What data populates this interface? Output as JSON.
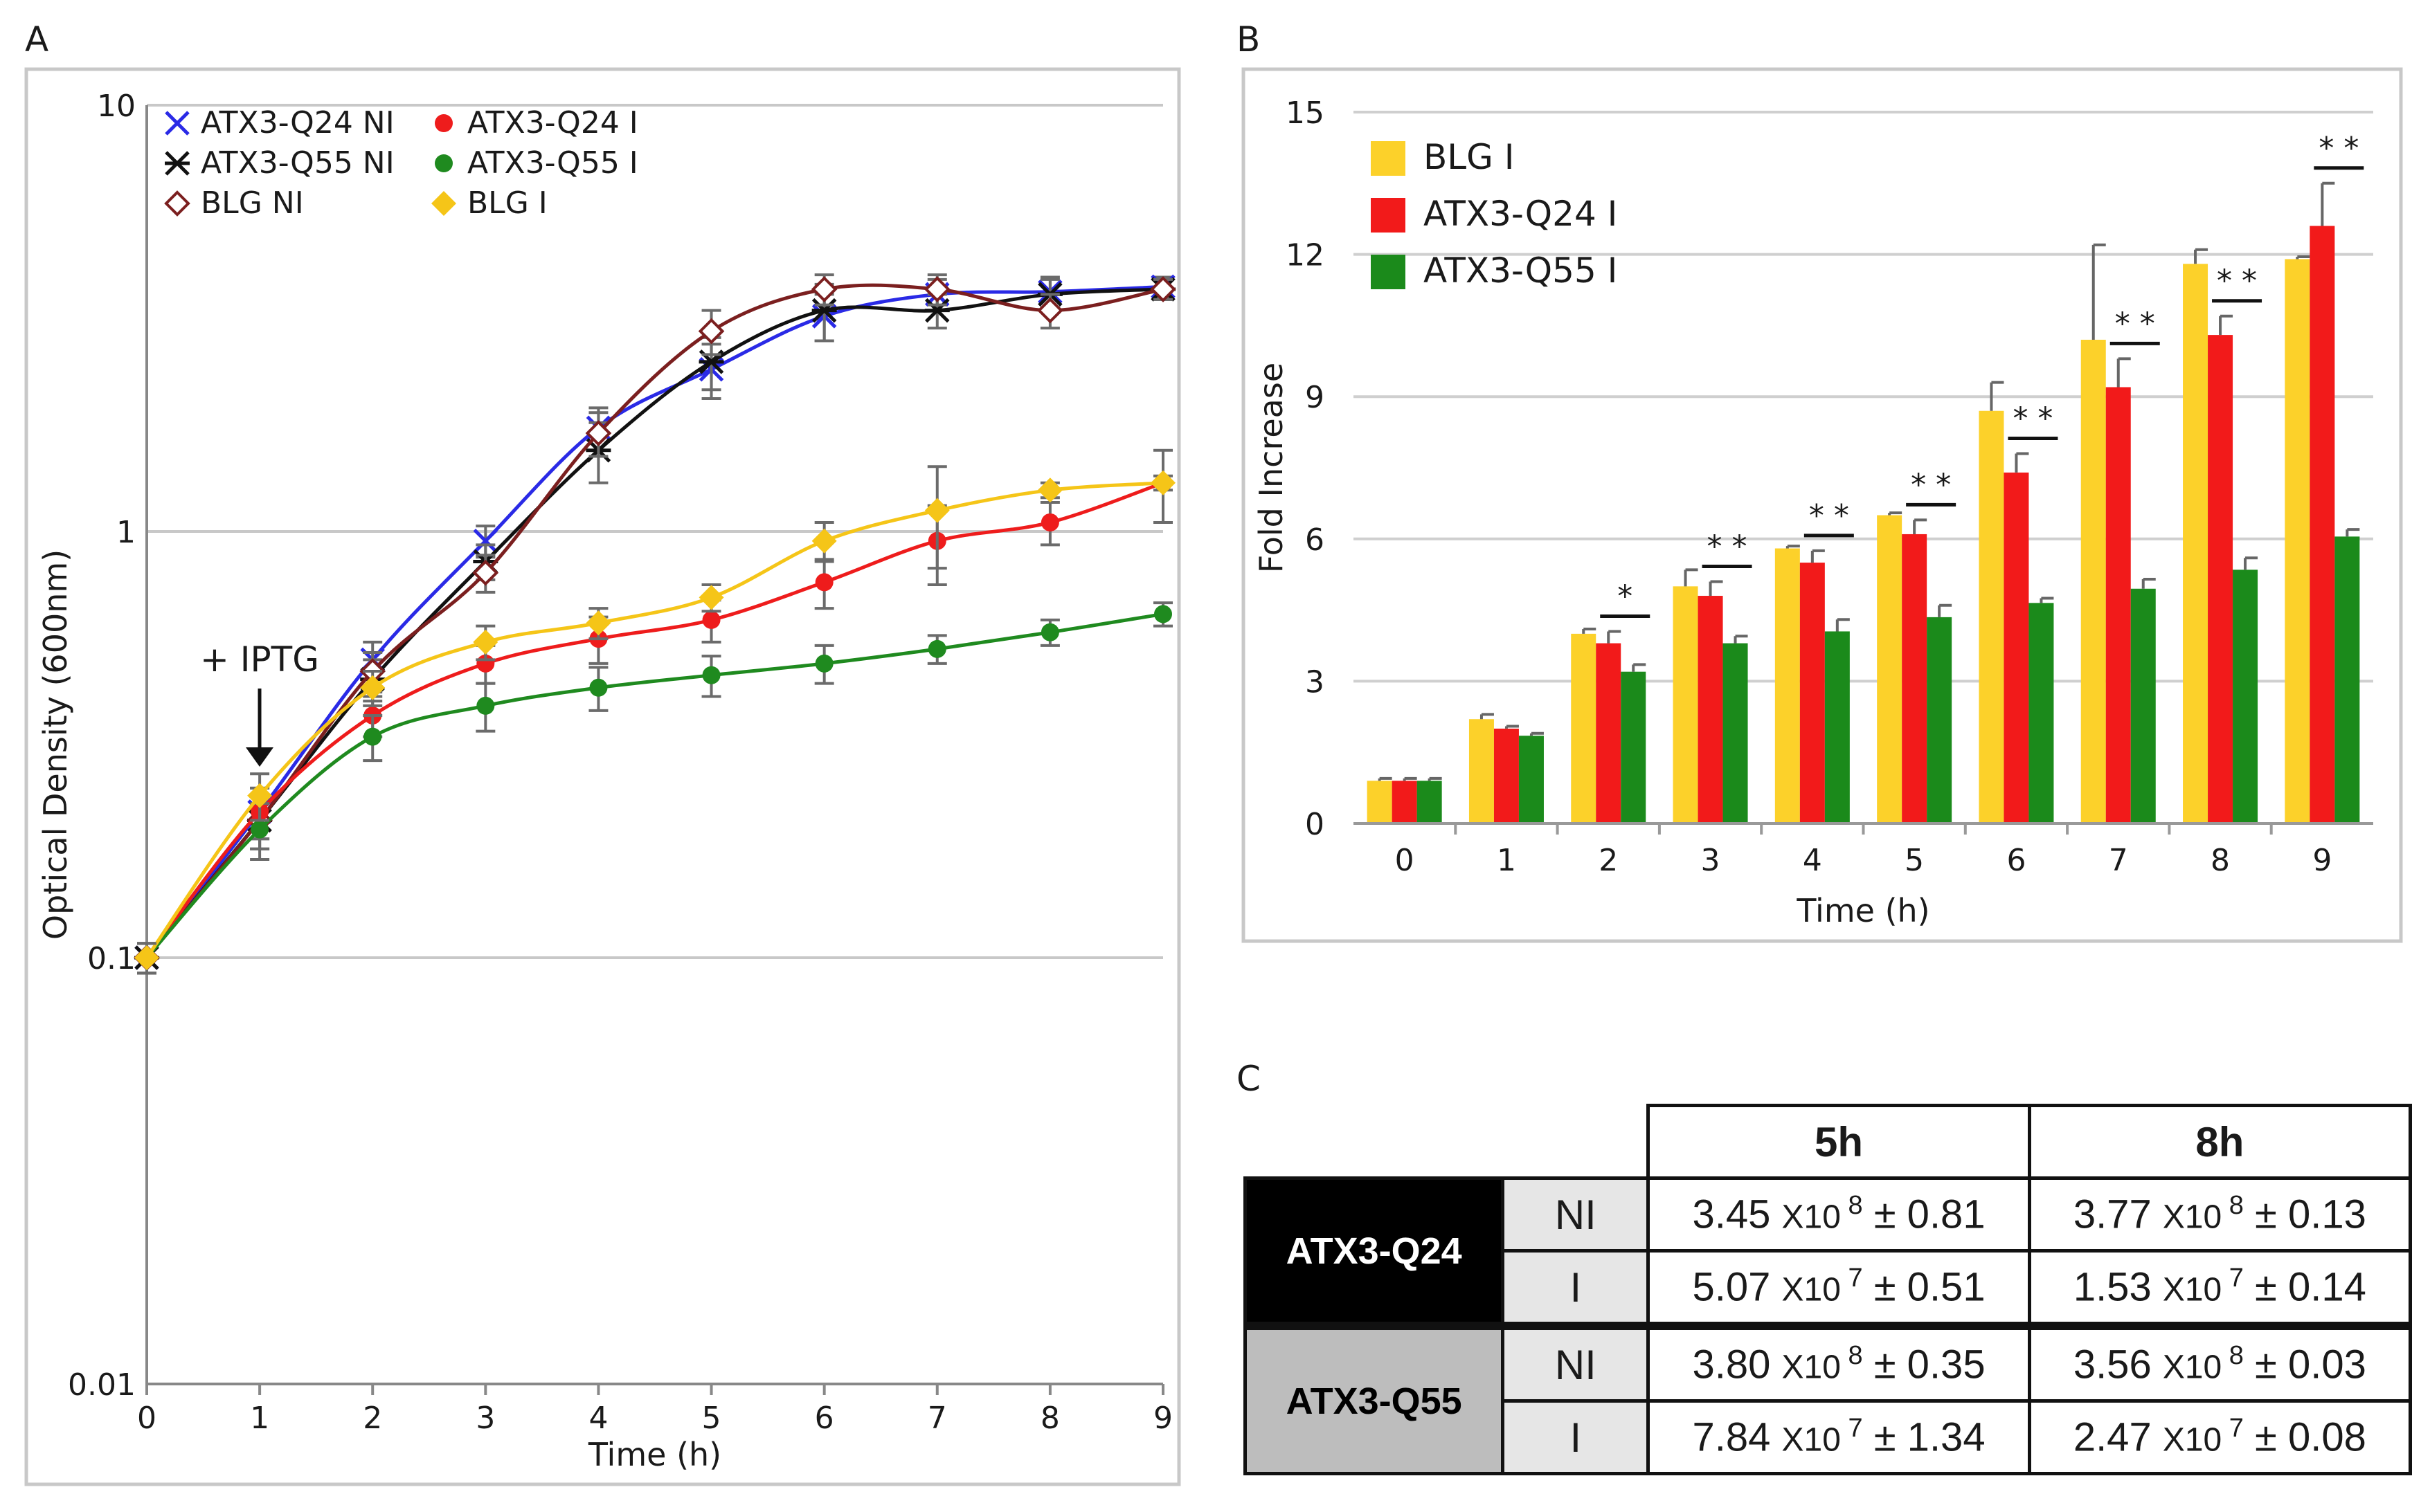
{
  "panels": {
    "a": "A",
    "b": "B",
    "c": "C"
  },
  "chart_data": [
    {
      "type": "line",
      "id": "A",
      "ylabel": "Optical Density (600nm)",
      "xlabel": "Time (h)",
      "yscale": "log",
      "ylim": [
        0.01,
        10
      ],
      "xlim": [
        0,
        9
      ],
      "xticks": [
        "0",
        "1",
        "2",
        "3",
        "4",
        "5",
        "6",
        "7",
        "8",
        "9"
      ],
      "yticks": [
        "0.01",
        "0.1",
        "1",
        "10"
      ],
      "annotation": "+ IPTG",
      "x": [
        0,
        1,
        2,
        3,
        4,
        5,
        6,
        7,
        8,
        9
      ],
      "series": [
        {
          "name": "ATX3-Q24 NI",
          "color": "#2a2ae6",
          "marker": "x",
          "values": [
            0.1,
            0.22,
            0.5,
            0.95,
            1.75,
            2.4,
            3.2,
            3.6,
            3.65,
            3.75
          ],
          "err": [
            0.008,
            0.03,
            0.05,
            0.08,
            0.2,
            0.35,
            0.4,
            0.3,
            0.3,
            0.2
          ]
        },
        {
          "name": "ATX3-Q55 NI",
          "color": "#111111",
          "marker": "star",
          "values": [
            0.1,
            0.21,
            0.45,
            0.85,
            1.55,
            2.5,
            3.3,
            3.3,
            3.6,
            3.7
          ],
          "err": [
            0.008,
            0.03,
            0.05,
            0.08,
            0.25,
            0.35,
            0.5,
            0.3,
            0.3,
            0.2
          ]
        },
        {
          "name": "BLG NI",
          "color": "#7b1f1f",
          "marker": "diamond-open",
          "values": [
            0.1,
            0.21,
            0.47,
            0.8,
            1.7,
            2.95,
            3.7,
            3.7,
            3.3,
            3.7
          ],
          "err": [
            0.008,
            0.03,
            0.05,
            0.08,
            0.2,
            0.35,
            0.3,
            0.3,
            0.3,
            0.2
          ]
        },
        {
          "name": "ATX3-Q24 I",
          "color": "#ee1c1c",
          "marker": "dot",
          "values": [
            0.1,
            0.22,
            0.37,
            0.49,
            0.56,
            0.62,
            0.76,
            0.95,
            1.05,
            1.3
          ],
          "err": [
            0.008,
            0.03,
            0.04,
            0.05,
            0.07,
            0.07,
            0.1,
            0.2,
            0.12,
            0.25
          ]
        },
        {
          "name": "ATX3-Q55 I",
          "color": "#1f8a1f",
          "marker": "dot",
          "values": [
            0.1,
            0.2,
            0.33,
            0.39,
            0.43,
            0.46,
            0.49,
            0.53,
            0.58,
            0.64
          ],
          "err": [
            0.008,
            0.03,
            0.04,
            0.05,
            0.05,
            0.05,
            0.05,
            0.04,
            0.04,
            0.04
          ]
        },
        {
          "name": "BLG I",
          "color": "#f5c518",
          "marker": "diamond",
          "values": [
            0.1,
            0.24,
            0.43,
            0.55,
            0.61,
            0.7,
            0.95,
            1.12,
            1.25,
            1.3
          ],
          "err": [
            0.008,
            0.03,
            0.04,
            0.05,
            0.05,
            0.05,
            0.1,
            0.3,
            0.05,
            0.05
          ]
        }
      ]
    },
    {
      "type": "bar",
      "id": "B",
      "ylabel": "Fold Increase",
      "xlabel": "Time (h)",
      "ylim": [
        0,
        15
      ],
      "yticks": [
        "0",
        "3",
        "6",
        "9",
        "12",
        "15"
      ],
      "categories": [
        "0",
        "1",
        "2",
        "3",
        "4",
        "5",
        "6",
        "7",
        "8",
        "9"
      ],
      "series": [
        {
          "name": "BLG I",
          "color": "#fcd12a",
          "values": [
            0.9,
            2.2,
            4.0,
            5.0,
            5.8,
            6.5,
            8.7,
            10.2,
            11.8,
            11.9
          ],
          "err": [
            0.05,
            0.1,
            0.1,
            0.35,
            0.05,
            0.05,
            0.6,
            2.0,
            0.3,
            0.05
          ]
        },
        {
          "name": "ATX3-Q24 I",
          "color": "#f21a1a",
          "values": [
            0.9,
            2.0,
            3.8,
            4.8,
            5.5,
            6.1,
            7.4,
            9.2,
            10.3,
            12.6
          ],
          "err": [
            0.05,
            0.05,
            0.25,
            0.3,
            0.25,
            0.3,
            0.4,
            0.6,
            0.4,
            0.9
          ]
        },
        {
          "name": "ATX3-Q55 I",
          "color": "#1b8a1b",
          "values": [
            0.9,
            1.85,
            3.2,
            3.8,
            4.05,
            4.35,
            4.65,
            4.95,
            5.35,
            6.05
          ],
          "err": [
            0.05,
            0.05,
            0.15,
            0.15,
            0.25,
            0.25,
            0.1,
            0.2,
            0.25,
            0.15
          ]
        }
      ],
      "significance": [
        "",
        "",
        "*",
        "* *",
        "* *",
        "* *",
        "* *",
        "* *",
        "* *",
        "* *"
      ]
    }
  ],
  "table": {
    "headers": [
      "5h",
      "8h"
    ],
    "groups": [
      {
        "name": "ATX3-Q24",
        "rows": [
          {
            "cond": "NI",
            "v5": {
              "mant": "3.45",
              "exp": "8",
              "err": "0.81"
            },
            "v8": {
              "mant": "3.77",
              "exp": "8",
              "err": "0.13"
            }
          },
          {
            "cond": "I",
            "v5": {
              "mant": "5.07",
              "exp": "7",
              "err": "0.51"
            },
            "v8": {
              "mant": "1.53",
              "exp": "7",
              "err": "0.14"
            }
          }
        ]
      },
      {
        "name": "ATX3-Q55",
        "rows": [
          {
            "cond": "NI",
            "v5": {
              "mant": "3.80",
              "exp": "8",
              "err": "0.35"
            },
            "v8": {
              "mant": "3.56",
              "exp": "8",
              "err": "0.03"
            }
          },
          {
            "cond": "I",
            "v5": {
              "mant": "7.84",
              "exp": "7",
              "err": "1.34"
            },
            "v8": {
              "mant": "2.47",
              "exp": "7",
              "err": "0.08"
            }
          }
        ]
      }
    ],
    "x_label": "X10",
    "pm": "±"
  }
}
